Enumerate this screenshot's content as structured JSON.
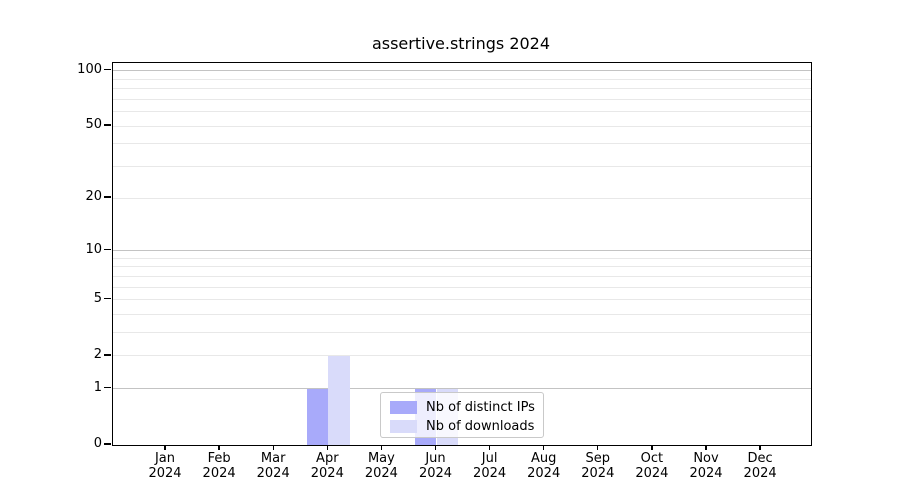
{
  "title": "assertive.strings 2024",
  "chart_data": {
    "type": "bar",
    "title": "assertive.strings 2024",
    "categories": [
      "Jan 2024",
      "Feb 2024",
      "Mar 2024",
      "Apr 2024",
      "May 2024",
      "Jun 2024",
      "Jul 2024",
      "Aug 2024",
      "Sep 2024",
      "Oct 2024",
      "Nov 2024",
      "Dec 2024"
    ],
    "series": [
      {
        "name": "Nb of distinct IPs",
        "color": "#a8aafa",
        "values": [
          0,
          0,
          0,
          1,
          0,
          1,
          0,
          0,
          0,
          0,
          0,
          0
        ]
      },
      {
        "name": "Nb of downloads",
        "color": "#d9dbfa",
        "values": [
          0,
          0,
          0,
          2,
          0,
          1,
          0,
          0,
          0,
          0,
          0,
          0
        ]
      }
    ],
    "yscale": "log1p",
    "ylim": [
      0,
      110
    ],
    "yticks": [
      {
        "value": 100,
        "label": "100"
      },
      {
        "value": 50,
        "label": "50"
      },
      {
        "value": 20,
        "label": "20"
      },
      {
        "value": 10,
        "label": "10"
      },
      {
        "value": 5,
        "label": "5"
      },
      {
        "value": 2,
        "label": "2"
      },
      {
        "value": 1,
        "label": "1"
      },
      {
        "value": 0,
        "label": "0"
      }
    ],
    "grid": true,
    "grid_major_values": [
      1,
      10,
      100
    ],
    "grid_minor_values": [
      2,
      3,
      4,
      5,
      6,
      7,
      8,
      9,
      20,
      30,
      40,
      50,
      60,
      70,
      80,
      90
    ],
    "legend_position": "bottom-center",
    "xlabel": "",
    "ylabel": ""
  },
  "colors": {
    "bar_distinct_ips": "#a8aafa",
    "bar_downloads": "#d9dbfa",
    "grid_major": "#c3c3c3",
    "grid_minor": "#e8e8e8",
    "axis": "#000000",
    "legend_border": "#c9c9c9"
  }
}
